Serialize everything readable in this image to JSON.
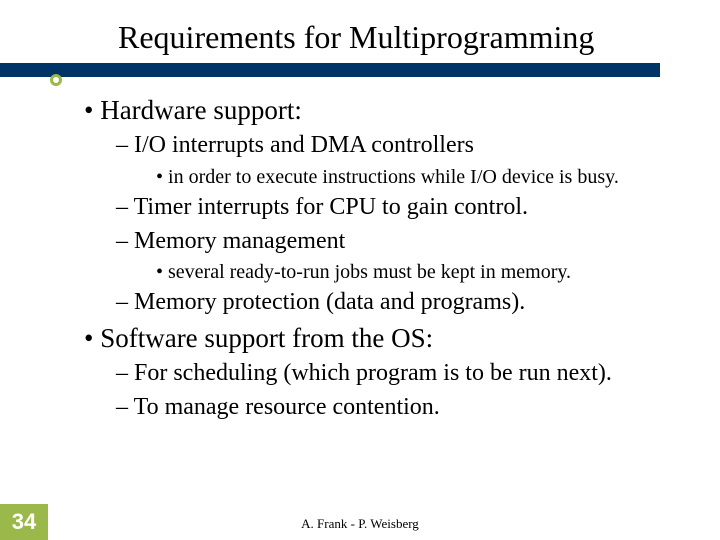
{
  "title": "Requirements for Multiprogramming",
  "colors": {
    "title_bar": "#003366",
    "accent": "#9bb84a",
    "page_num_text": "#ffffff",
    "text": "#000000",
    "background": "#ffffff"
  },
  "typography": {
    "title_fontsize": 32,
    "lvl1_fontsize": 27,
    "lvl2_fontsize": 24,
    "lvl3_fontsize": 20,
    "footer_fontsize": 13,
    "page_num_fontsize": 22,
    "body_font": "Times New Roman",
    "page_num_font": "Arial"
  },
  "bullets": {
    "b1": "Hardware support:",
    "b1_1": "I/O interrupts and DMA controllers",
    "b1_1_1": "in order to execute instructions while I/O device is busy.",
    "b1_2": "Timer interrupts for CPU to gain control.",
    "b1_3": "Memory management",
    "b1_3_1": "several ready-to-run jobs must be kept in memory.",
    "b1_4": "Memory protection (data and programs).",
    "b2": "Software support from the OS:",
    "b2_1": "For scheduling (which program is to be run next).",
    "b2_2": "To manage resource contention."
  },
  "page_number": "34",
  "footer": "A. Frank - P. Weisberg"
}
